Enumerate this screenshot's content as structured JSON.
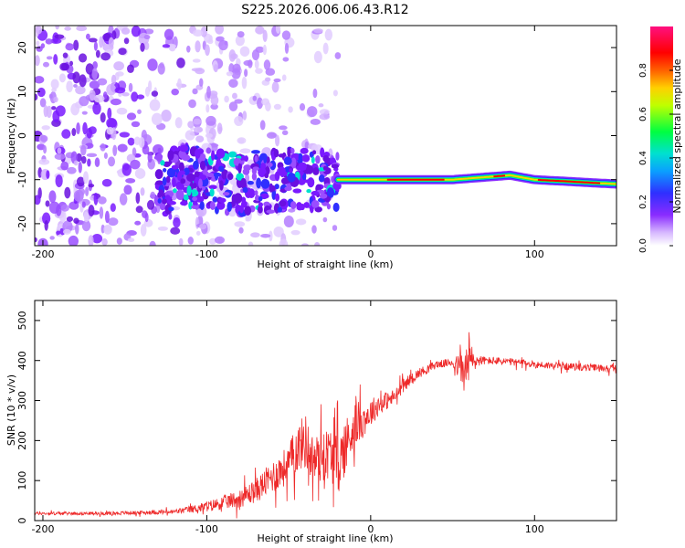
{
  "title": "S225.2026.006.06.43.R12",
  "colors": {
    "trace": "#ee2a2a",
    "spectrogram_low": "#7a1aff",
    "background": "#ffffff"
  },
  "chart_data": [
    {
      "type": "heatmap",
      "xlabel": "Height of straight line (km)",
      "ylabel": "Frequency (Hz)",
      "xlim": [
        -205,
        150
      ],
      "ylim": [
        -25,
        25
      ],
      "xticks": [
        -200,
        -100,
        0,
        100
      ],
      "xtick_labels": [
        "-200",
        "-100",
        "0",
        "100"
      ],
      "yticks": [
        -20,
        -10,
        0,
        10,
        20
      ],
      "ytick_labels": [
        "-20",
        "-10",
        "0",
        "10",
        "20"
      ],
      "colorbar": {
        "label": "Normalized spectral amplitude",
        "range": [
          0,
          1
        ],
        "ticks": [
          0.0,
          0.2,
          0.4,
          0.6,
          0.8
        ],
        "tick_labels": [
          "0.0",
          "0.2",
          "0.4",
          "0.6",
          "0.8"
        ],
        "colormap": "rainbow (white-violet-blue-cyan-green-yellow-red-magenta)"
      },
      "feature": {
        "description_free_values": true,
        "ridge_frequency_hz": [
          [
            -120,
            -9
          ],
          [
            -100,
            -10
          ],
          [
            -80,
            -11
          ],
          [
            -50,
            -10
          ],
          [
            -20,
            -10
          ],
          [
            0,
            -10
          ],
          [
            50,
            -10
          ],
          [
            85,
            -9
          ],
          [
            100,
            -10
          ],
          [
            150,
            -11
          ]
        ],
        "scatter_region_x": [
          -205,
          -20
        ]
      }
    },
    {
      "type": "line",
      "xlabel": "Height of straight line (km)",
      "ylabel": "SNR (10 * v/v)",
      "xlim": [
        -205,
        150
      ],
      "ylim": [
        0,
        550
      ],
      "xticks": [
        -200,
        -100,
        0,
        100
      ],
      "xtick_labels": [
        "-200",
        "-100",
        "0",
        "100"
      ],
      "yticks": [
        0,
        100,
        200,
        300,
        400,
        500
      ],
      "ytick_labels": [
        "0",
        "100",
        "200",
        "300",
        "400",
        "500"
      ],
      "series": [
        {
          "x": [
            -205,
            -180,
            -160,
            -140,
            -120,
            -110,
            -100,
            -90,
            -80,
            -70,
            -60,
            -50,
            -45,
            -40,
            -35,
            -30,
            -25,
            -20,
            -15,
            -10,
            -5,
            0,
            5,
            10,
            15,
            20,
            30,
            40,
            50,
            55,
            58,
            60,
            62,
            65,
            70,
            80,
            90,
            100,
            120,
            150
          ],
          "y": [
            18,
            18,
            18,
            20,
            22,
            28,
            35,
            45,
            55,
            75,
            110,
            140,
            180,
            200,
            150,
            160,
            170,
            140,
            190,
            240,
            250,
            270,
            290,
            300,
            310,
            340,
            370,
            390,
            395,
            380,
            370,
            410,
            395,
            400,
            400,
            398,
            395,
            390,
            385,
            380
          ],
          "noise_amplitude": [
            8,
            8,
            8,
            10,
            12,
            18,
            25,
            35,
            45,
            60,
            80,
            100,
            120,
            140,
            120,
            130,
            130,
            150,
            140,
            120,
            90,
            70,
            55,
            45,
            40,
            30,
            25,
            20,
            20,
            80,
            120,
            140,
            80,
            30,
            20,
            20,
            18,
            18,
            18,
            18
          ]
        }
      ]
    }
  ]
}
